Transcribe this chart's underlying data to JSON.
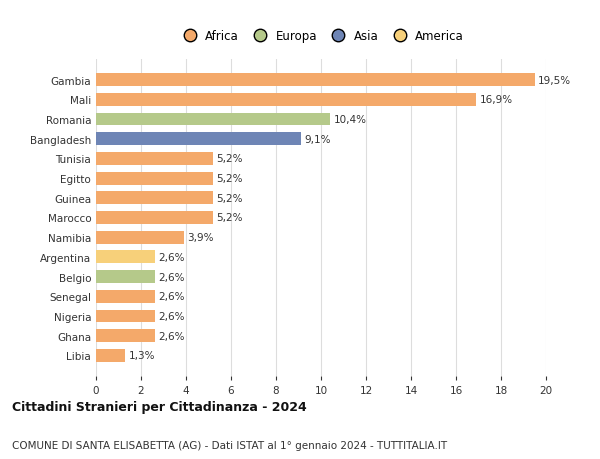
{
  "categories": [
    "Gambia",
    "Mali",
    "Romania",
    "Bangladesh",
    "Tunisia",
    "Egitto",
    "Guinea",
    "Marocco",
    "Namibia",
    "Argentina",
    "Belgio",
    "Senegal",
    "Nigeria",
    "Ghana",
    "Libia"
  ],
  "values": [
    19.5,
    16.9,
    10.4,
    9.1,
    5.2,
    5.2,
    5.2,
    5.2,
    3.9,
    2.6,
    2.6,
    2.6,
    2.6,
    2.6,
    1.3
  ],
  "labels": [
    "19,5%",
    "16,9%",
    "10,4%",
    "9,1%",
    "5,2%",
    "5,2%",
    "5,2%",
    "5,2%",
    "3,9%",
    "2,6%",
    "2,6%",
    "2,6%",
    "2,6%",
    "2,6%",
    "1,3%"
  ],
  "colors": [
    "#f4a96a",
    "#f4a96a",
    "#b5c98a",
    "#6e85b5",
    "#f4a96a",
    "#f4a96a",
    "#f4a96a",
    "#f4a96a",
    "#f4a96a",
    "#f7d07a",
    "#b5c98a",
    "#f4a96a",
    "#f4a96a",
    "#f4a96a",
    "#f4a96a"
  ],
  "legend": {
    "Africa": "#f4a96a",
    "Europa": "#b5c98a",
    "Asia": "#6e85b5",
    "America": "#f7d07a"
  },
  "xlim": [
    0,
    20
  ],
  "xticks": [
    0,
    2,
    4,
    6,
    8,
    10,
    12,
    14,
    16,
    18,
    20
  ],
  "title1": "Cittadini Stranieri per Cittadinanza - 2024",
  "title2": "COMUNE DI SANTA ELISABETTA (AG) - Dati ISTAT al 1° gennaio 2024 - TUTTITALIA.IT",
  "background_color": "#ffffff",
  "grid_color": "#dddddd",
  "bar_height": 0.65,
  "label_fontsize": 7.5,
  "tick_fontsize": 7.5,
  "title1_fontsize": 9,
  "title2_fontsize": 7.5
}
